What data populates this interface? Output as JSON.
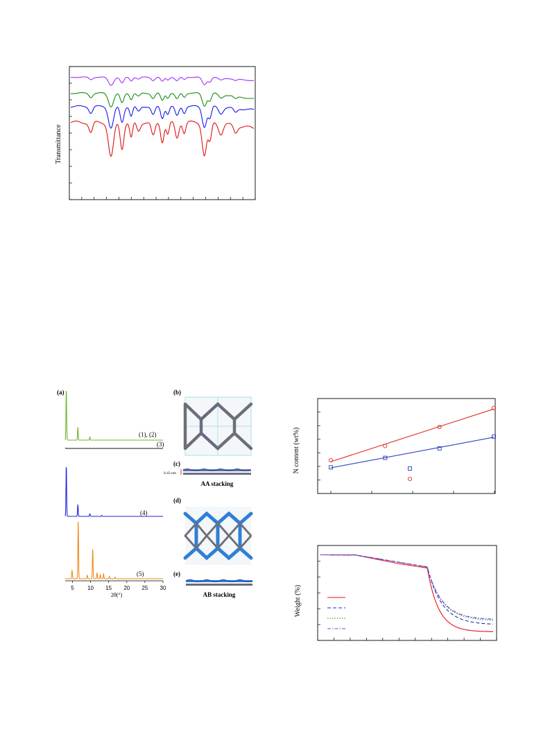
{
  "figures": {
    "ftir": {
      "ylabel": "Transmittance",
      "colors": [
        "#9b30ff",
        "#138a13",
        "#1515ee",
        "#e01010"
      ]
    },
    "xrd": {
      "panel_a": "(a)",
      "panel_b": "(b)",
      "panel_c": "(c)",
      "panel_d": "(d)",
      "panel_e": "(e)",
      "label_12": "(1), (2)",
      "label_3": "(3)",
      "label_4": "(4)",
      "label_5": "(5)",
      "xlabel": "2θ(°)",
      "xticks": [
        "5",
        "10",
        "15",
        "20",
        "25",
        "30"
      ],
      "interlayer": "0.43 nm",
      "aa_label": "AA stacking",
      "ab_label": "AB stacking",
      "colors": [
        "#6fb62a",
        "#111111",
        "#2222dd",
        "#f08a1a"
      ]
    },
    "ncontent": {
      "ylabel": "N content (wt%)"
    },
    "tga": {
      "ylabel": "Weight (%)"
    }
  },
  "chart_data": [
    {
      "type": "line",
      "title": "",
      "xlabel": "",
      "ylabel": "Transmittance",
      "series": [
        {
          "color": "#9b30ff",
          "baseline": 0.92
        },
        {
          "color": "#138a13",
          "baseline": 0.8
        },
        {
          "color": "#1515ee",
          "baseline": 0.7
        },
        {
          "color": "#e01010",
          "baseline": 0.58
        }
      ]
    },
    {
      "type": "line",
      "xlabel": "2θ(°)",
      "xlim": [
        3,
        30
      ],
      "series": [
        {
          "name": "(1), (2)",
          "color": "#6fb62a",
          "peaks": [
            [
              3.3,
              1.0
            ],
            [
              6.5,
              0.25
            ],
            [
              9.8,
              0.06
            ]
          ]
        },
        {
          "name": "(3)",
          "color": "#111111",
          "peaks": [
            [
              3.2,
              0.1
            ]
          ]
        },
        {
          "name": "(4)",
          "color": "#2222dd",
          "peaks": [
            [
              3.3,
              1.0
            ],
            [
              6.5,
              0.23
            ],
            [
              9.8,
              0.05
            ],
            [
              13.1,
              0.02
            ]
          ]
        },
        {
          "name": "(5)",
          "color": "#f08a1a",
          "peaks": [
            [
              4.9,
              0.15
            ],
            [
              6.6,
              1.0
            ],
            [
              9.1,
              0.06
            ],
            [
              10.6,
              0.52
            ],
            [
              11.8,
              0.1
            ],
            [
              12.7,
              0.07
            ],
            [
              13.6,
              0.09
            ],
            [
              15.2,
              0.04
            ],
            [
              16.8,
              0.03
            ]
          ]
        }
      ]
    },
    {
      "type": "scatter",
      "ylabel": "N content (wt%)",
      "x": [
        1,
        2,
        3,
        4
      ],
      "series": [
        {
          "color": "#2a3fbf",
          "marker": "square",
          "values": [
            3.1,
            3.5,
            3.9,
            4.4
          ]
        },
        {
          "color": "#e02a2a",
          "marker": "circle",
          "values": [
            3.4,
            4.0,
            4.8,
            5.6
          ]
        }
      ]
    },
    {
      "type": "line",
      "ylabel": "Weight (%)",
      "series": [
        {
          "color": "#ee1111",
          "style": "solid",
          "final": 0.23
        },
        {
          "color": "#1a2fbf",
          "style": "dashed",
          "final": 0.3
        },
        {
          "color": "#109010",
          "style": "dotted",
          "final": 0.34
        },
        {
          "color": "#7a3fd0",
          "style": "dash-dot",
          "final": 0.35
        }
      ]
    }
  ]
}
